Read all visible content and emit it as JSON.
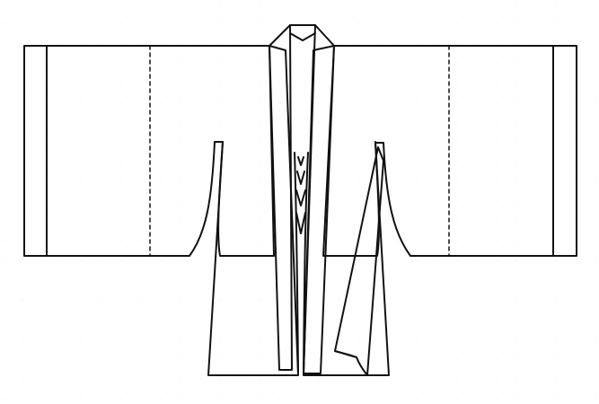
{
  "illustration": {
    "subject": "robe",
    "line_color": "#111111",
    "paper_color": "#ffffff",
    "speckle_color": "#777777"
  }
}
